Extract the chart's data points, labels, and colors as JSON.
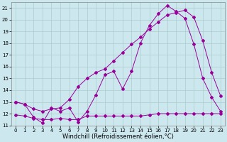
{
  "line1_x": [
    0,
    1,
    2,
    3,
    4,
    5,
    6,
    7,
    8,
    9,
    10,
    11,
    12,
    13,
    14,
    15,
    16,
    17,
    18,
    19,
    20,
    21,
    22,
    23
  ],
  "line1_y": [
    13.0,
    12.8,
    11.7,
    11.2,
    12.5,
    12.2,
    12.5,
    11.3,
    12.2,
    13.6,
    15.3,
    15.6,
    14.1,
    15.6,
    18.0,
    19.5,
    20.5,
    21.2,
    20.7,
    20.1,
    17.9,
    15.0,
    13.4,
    12.2
  ],
  "line2_x": [
    0,
    1,
    2,
    3,
    4,
    5,
    6,
    7,
    8,
    9,
    10,
    11,
    12,
    13,
    14,
    15,
    16,
    17,
    18,
    19,
    20,
    21,
    22,
    23
  ],
  "line2_y": [
    13.0,
    12.8,
    12.4,
    12.2,
    12.4,
    12.5,
    13.2,
    14.3,
    15.0,
    15.5,
    15.8,
    16.5,
    17.2,
    17.9,
    18.5,
    19.2,
    19.8,
    20.4,
    20.6,
    20.8,
    20.2,
    18.2,
    15.5,
    13.5
  ],
  "line3_x": [
    0,
    1,
    2,
    3,
    4,
    5,
    6,
    7,
    8,
    9,
    10,
    11,
    12,
    13,
    14,
    15,
    16,
    17,
    18,
    19,
    20,
    21,
    22,
    23
  ],
  "line3_y": [
    11.9,
    11.8,
    11.6,
    11.5,
    11.5,
    11.6,
    11.5,
    11.5,
    11.8,
    11.8,
    11.8,
    11.8,
    11.8,
    11.8,
    11.8,
    11.9,
    12.0,
    12.0,
    12.0,
    12.0,
    12.0,
    12.0,
    12.0,
    12.0
  ],
  "line_color": "#990099",
  "bg_color": "#cce8ee",
  "grid_color": "#aacccc",
  "xlabel": "Windchill (Refroidissement éolien,°C)",
  "ylim": [
    11,
    21.5
  ],
  "xlim": [
    -0.5,
    23.5
  ],
  "yticks": [
    11,
    12,
    13,
    14,
    15,
    16,
    17,
    18,
    19,
    20,
    21
  ],
  "xticks": [
    0,
    1,
    2,
    3,
    4,
    5,
    6,
    7,
    8,
    9,
    10,
    11,
    12,
    13,
    14,
    15,
    16,
    17,
    18,
    19,
    20,
    21,
    22,
    23
  ],
  "tick_fontsize": 5.0,
  "xlabel_fontsize": 6.0,
  "marker_size": 2.0,
  "line_width": 0.7
}
